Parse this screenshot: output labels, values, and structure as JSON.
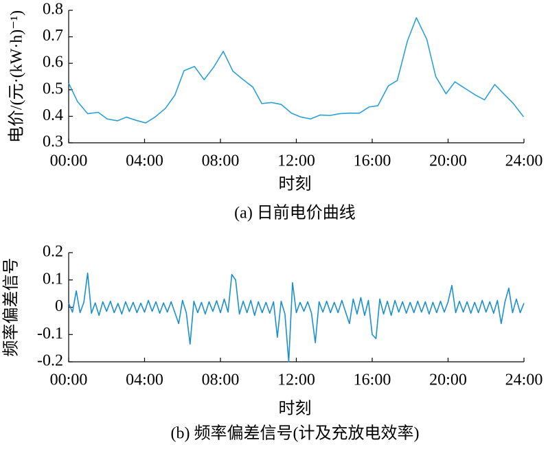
{
  "chart_data": [
    {
      "type": "line",
      "caption": "(a) 日前电价曲线",
      "xlabel": "时刻",
      "ylabel": "电价/(元·(kW·h)⁻¹)",
      "xlim": [
        0,
        24
      ],
      "ylim": [
        0.3,
        0.8
      ],
      "xticks": [
        {
          "value": 0,
          "label": "00:00"
        },
        {
          "value": 4,
          "label": "04:00"
        },
        {
          "value": 8,
          "label": "08:00"
        },
        {
          "value": 12,
          "label": "12:00"
        },
        {
          "value": 16,
          "label": "16:00"
        },
        {
          "value": 20,
          "label": "20:00"
        },
        {
          "value": 24,
          "label": "24:00"
        }
      ],
      "yticks": [
        0.3,
        0.4,
        0.5,
        0.6,
        0.7,
        0.8
      ],
      "color": "#2aa0d8",
      "x": [
        0,
        0.47,
        1.0,
        1.56,
        2.03,
        2.57,
        3.04,
        3.55,
        4.06,
        4.57,
        5.1,
        5.6,
        6.08,
        6.63,
        7.14,
        7.64,
        8.15,
        8.66,
        9.17,
        9.71,
        10.18,
        10.69,
        11.2,
        11.74,
        12.21,
        12.75,
        13.26,
        13.77,
        14.28,
        14.78,
        15.33,
        15.83,
        16.3,
        16.85,
        17.32,
        17.86,
        18.33,
        18.88,
        19.35,
        19.89,
        20.36,
        20.9,
        21.45,
        21.92,
        22.46,
        22.93,
        23.44,
        23.98
      ],
      "values": [
        0.525,
        0.455,
        0.41,
        0.415,
        0.39,
        0.383,
        0.397,
        0.385,
        0.375,
        0.398,
        0.43,
        0.48,
        0.572,
        0.588,
        0.538,
        0.585,
        0.645,
        0.57,
        0.54,
        0.51,
        0.448,
        0.452,
        0.445,
        0.412,
        0.398,
        0.39,
        0.405,
        0.403,
        0.41,
        0.412,
        0.412,
        0.435,
        0.44,
        0.515,
        0.535,
        0.685,
        0.772,
        0.69,
        0.55,
        0.485,
        0.53,
        0.505,
        0.48,
        0.462,
        0.52,
        0.485,
        0.448,
        0.398
      ]
    },
    {
      "type": "line",
      "caption": "(b) 频率偏差信号(计及充放电效率)",
      "xlabel": "时刻",
      "ylabel": "频率偏差信号",
      "xlim": [
        0,
        24
      ],
      "ylim": [
        -0.2,
        0.2
      ],
      "xticks": [
        {
          "value": 0,
          "label": "00:00"
        },
        {
          "value": 4,
          "label": "04:00"
        },
        {
          "value": 8,
          "label": "08:00"
        },
        {
          "value": 12,
          "label": "12:00"
        },
        {
          "value": 16,
          "label": "16:00"
        },
        {
          "value": 20,
          "label": "20:00"
        },
        {
          "value": 24,
          "label": "24:00"
        }
      ],
      "yticks": [
        -0.2,
        -0.1,
        0,
        0.1,
        0.2
      ],
      "color": "#1a8fd0",
      "x": [
        0,
        0.2,
        0.4,
        0.6,
        0.8,
        1.0,
        1.2,
        1.4,
        1.6,
        1.8,
        2.0,
        2.2,
        2.4,
        2.6,
        2.8,
        3.0,
        3.2,
        3.4,
        3.6,
        3.8,
        4.0,
        4.2,
        4.4,
        4.6,
        4.8,
        5.0,
        5.2,
        5.4,
        5.6,
        5.8,
        6.0,
        6.2,
        6.4,
        6.6,
        6.8,
        7.0,
        7.2,
        7.4,
        7.6,
        7.8,
        8.0,
        8.2,
        8.4,
        8.6,
        8.8,
        9.0,
        9.2,
        9.4,
        9.6,
        9.8,
        10.0,
        10.2,
        10.4,
        10.6,
        10.8,
        11.0,
        11.2,
        11.4,
        11.6,
        11.8,
        12.0,
        12.2,
        12.4,
        12.6,
        12.8,
        13.0,
        13.2,
        13.4,
        13.6,
        13.8,
        14.0,
        14.2,
        14.4,
        14.6,
        14.8,
        15.0,
        15.2,
        15.4,
        15.6,
        15.8,
        16.0,
        16.2,
        16.4,
        16.6,
        16.8,
        17.0,
        17.2,
        17.4,
        17.6,
        17.8,
        18.0,
        18.2,
        18.4,
        18.6,
        18.8,
        19.0,
        19.2,
        19.4,
        19.6,
        19.8,
        20.0,
        20.2,
        20.4,
        20.6,
        20.8,
        21.0,
        21.2,
        21.4,
        21.6,
        21.8,
        22.0,
        22.2,
        22.4,
        22.6,
        22.8,
        23.0,
        23.2,
        23.4,
        23.6,
        23.8,
        24.0
      ],
      "values": [
        0.015,
        -0.018,
        0.06,
        -0.02,
        0.018,
        0.125,
        -0.022,
        0.016,
        -0.03,
        0.02,
        -0.015,
        0.022,
        -0.02,
        0.014,
        -0.025,
        0.02,
        -0.016,
        0.018,
        -0.02,
        0.015,
        -0.018,
        0.025,
        -0.015,
        0.02,
        -0.022,
        0.016,
        -0.018,
        0.02,
        -0.02,
        -0.06,
        0.025,
        -0.02,
        -0.135,
        0.022,
        -0.02,
        0.018,
        -0.025,
        0.02,
        -0.015,
        0.024,
        -0.02,
        0.03,
        -0.018,
        0.12,
        0.1,
        -0.025,
        0.022,
        -0.02,
        0.025,
        -0.03,
        0.02,
        -0.02,
        0.018,
        -0.022,
        0.02,
        -0.11,
        0.022,
        -0.025,
        -0.2,
        0.09,
        -0.02,
        0.018,
        -0.015,
        0.02,
        -0.022,
        -0.13,
        0.02,
        -0.018,
        0.022,
        -0.02,
        0.018,
        -0.02,
        0.025,
        -0.018,
        -0.06,
        0.03,
        -0.025,
        0.035,
        -0.03,
        0.025,
        -0.1,
        -0.115,
        0.03,
        -0.025,
        0.022,
        -0.03,
        0.025,
        -0.018,
        0.02,
        -0.022,
        0.018,
        -0.02,
        0.022,
        -0.018,
        0.02,
        -0.025,
        0.018,
        -0.02,
        0.022,
        -0.018,
        0.02,
        0.08,
        -0.02,
        0.022,
        -0.018,
        0.02,
        -0.022,
        0.018,
        -0.02,
        0.025,
        -0.018,
        0.02,
        -0.022,
        0.025,
        -0.06,
        0.02,
        0.07,
        -0.02,
        0.03,
        -0.02,
        0.015
      ]
    }
  ]
}
